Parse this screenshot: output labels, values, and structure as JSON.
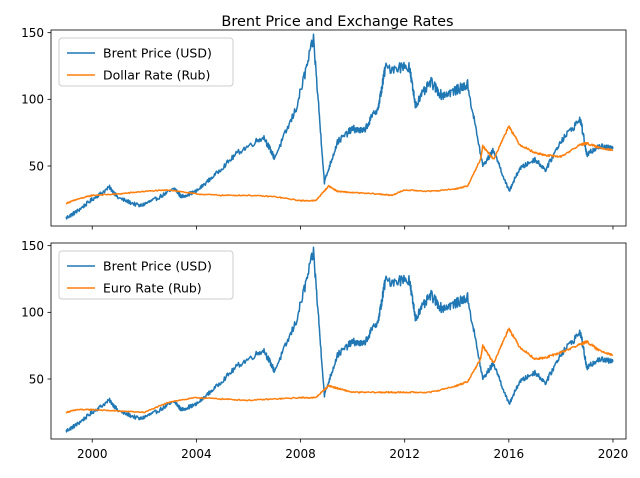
{
  "figure": {
    "title": "Brent Price and Exchange Rates"
  },
  "colors": {
    "brent": "#1f77b4",
    "rate": "#ff7f0e",
    "axis": "#000000",
    "legend_border": "#cccccc"
  },
  "chart_data": [
    {
      "type": "line",
      "x_type": "date",
      "xlim": [
        "1998-06-01",
        "2020-07-01"
      ],
      "ylim": [
        5,
        152
      ],
      "x_ticks": [
        "2000",
        "2004",
        "2008",
        "2012",
        "2016",
        "2020"
      ],
      "x_tick_labels_visible": false,
      "y_ticks": [
        "50",
        "100",
        "150"
      ],
      "legend_position": "upper-left",
      "series": [
        {
          "name": "Brent Price (USD)",
          "color": "#1f77b4",
          "x": [
            "1999-01",
            "1999-06",
            "2000-01",
            "2000-09",
            "2001-01",
            "2001-11",
            "2002-06",
            "2003-03",
            "2003-06",
            "2004-01",
            "2004-10",
            "2005-08",
            "2006-08",
            "2007-01",
            "2007-11",
            "2008-07",
            "2008-12",
            "2009-06",
            "2010-01",
            "2010-06",
            "2011-01",
            "2011-04",
            "2012-03",
            "2012-06",
            "2013-01",
            "2013-06",
            "2014-01",
            "2014-06",
            "2015-01",
            "2015-06",
            "2016-01",
            "2016-06",
            "2017-01",
            "2017-06",
            "2018-01",
            "2018-10",
            "2019-01",
            "2019-06",
            "2020-01"
          ],
          "values": [
            11,
            16,
            25,
            34,
            26,
            20,
            25,
            33,
            27,
            31,
            44,
            60,
            72,
            56,
            93,
            145,
            38,
            68,
            78,
            76,
            95,
            123,
            125,
            96,
            113,
            103,
            107,
            111,
            50,
            62,
            31,
            48,
            55,
            47,
            69,
            85,
            58,
            65,
            63
          ]
        },
        {
          "name": "Dollar Rate (Rub)",
          "color": "#ff7f0e",
          "x": [
            "1999-01",
            "1999-06",
            "2000-01",
            "2001-01",
            "2002-01",
            "2003-01",
            "2004-01",
            "2005-01",
            "2006-01",
            "2007-01",
            "2008-01",
            "2008-08",
            "2009-02",
            "2009-06",
            "2010-01",
            "2011-01",
            "2011-07",
            "2012-01",
            "2013-01",
            "2014-01",
            "2014-06",
            "2014-12",
            "2015-01",
            "2015-06",
            "2016-01",
            "2016-06",
            "2017-01",
            "2017-06",
            "2018-01",
            "2018-10",
            "2019-01",
            "2019-06",
            "2020-01"
          ],
          "values": [
            22,
            25,
            28,
            29,
            31,
            32,
            29,
            28,
            28,
            27,
            24,
            24,
            35,
            31,
            30,
            29,
            28,
            32,
            31,
            33,
            35,
            55,
            65,
            55,
            80,
            66,
            60,
            58,
            57,
            66,
            67,
            64,
            62
          ]
        }
      ]
    },
    {
      "type": "line",
      "x_type": "date",
      "xlim": [
        "1998-06-01",
        "2020-07-01"
      ],
      "ylim": [
        5,
        152
      ],
      "x_ticks": [
        "2000",
        "2004",
        "2008",
        "2012",
        "2016",
        "2020"
      ],
      "x_tick_labels_visible": true,
      "y_ticks": [
        "50",
        "100",
        "150"
      ],
      "legend_position": "upper-left",
      "series": [
        {
          "name": "Brent Price (USD)",
          "color": "#1f77b4",
          "x": [
            "1999-01",
            "1999-06",
            "2000-01",
            "2000-09",
            "2001-01",
            "2001-11",
            "2002-06",
            "2003-03",
            "2003-06",
            "2004-01",
            "2004-10",
            "2005-08",
            "2006-08",
            "2007-01",
            "2007-11",
            "2008-07",
            "2008-12",
            "2009-06",
            "2010-01",
            "2010-06",
            "2011-01",
            "2011-04",
            "2012-03",
            "2012-06",
            "2013-01",
            "2013-06",
            "2014-01",
            "2014-06",
            "2015-01",
            "2015-06",
            "2016-01",
            "2016-06",
            "2017-01",
            "2017-06",
            "2018-01",
            "2018-10",
            "2019-01",
            "2019-06",
            "2020-01"
          ],
          "values": [
            11,
            16,
            25,
            34,
            26,
            20,
            25,
            33,
            27,
            31,
            44,
            60,
            72,
            56,
            93,
            145,
            38,
            68,
            78,
            76,
            95,
            123,
            125,
            96,
            113,
            103,
            107,
            111,
            50,
            62,
            31,
            48,
            55,
            47,
            69,
            85,
            58,
            65,
            63
          ]
        },
        {
          "name": "Euro Rate (Rub)",
          "color": "#ff7f0e",
          "x": [
            "1999-01",
            "1999-06",
            "2000-01",
            "2001-01",
            "2002-01",
            "2003-01",
            "2004-01",
            "2005-01",
            "2006-01",
            "2007-01",
            "2008-01",
            "2008-08",
            "2009-02",
            "2009-06",
            "2010-01",
            "2011-01",
            "2011-07",
            "2012-01",
            "2013-01",
            "2014-01",
            "2014-06",
            "2014-12",
            "2015-01",
            "2015-06",
            "2016-01",
            "2016-06",
            "2017-01",
            "2017-06",
            "2018-01",
            "2018-10",
            "2019-01",
            "2019-06",
            "2020-01"
          ],
          "values": [
            25,
            27,
            27,
            26,
            25,
            33,
            36,
            35,
            34,
            35,
            36,
            36,
            45,
            43,
            40,
            40,
            40,
            40,
            40,
            45,
            48,
            65,
            75,
            62,
            88,
            74,
            65,
            66,
            70,
            76,
            78,
            72,
            68
          ]
        }
      ]
    }
  ]
}
